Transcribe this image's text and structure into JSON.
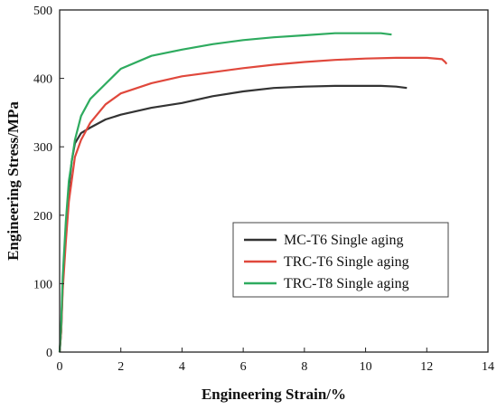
{
  "chart_data": {
    "type": "line",
    "title": "",
    "xlabel": "Engineering Strain/%",
    "ylabel": "Engineering Stress/MPa",
    "xlim": [
      0,
      14
    ],
    "ylim": [
      0,
      500
    ],
    "xticks": [
      "0",
      "2",
      "4",
      "6",
      "8",
      "10",
      "12",
      "14"
    ],
    "yticks": [
      "0",
      "100",
      "200",
      "300",
      "400",
      "500"
    ],
    "grid": false,
    "legend_position": "lower-right",
    "series": [
      {
        "name": "MC-T6 Single aging",
        "color": "#333333",
        "points": [
          [
            0,
            0
          ],
          [
            0.05,
            30
          ],
          [
            0.1,
            100
          ],
          [
            0.2,
            180
          ],
          [
            0.3,
            240
          ],
          [
            0.4,
            280
          ],
          [
            0.5,
            305
          ],
          [
            0.7,
            320
          ],
          [
            1.0,
            328
          ],
          [
            1.5,
            340
          ],
          [
            2.0,
            347
          ],
          [
            3.0,
            357
          ],
          [
            4.0,
            364
          ],
          [
            5.0,
            374
          ],
          [
            6.0,
            381
          ],
          [
            7.0,
            386
          ],
          [
            8.0,
            388
          ],
          [
            9.0,
            389
          ],
          [
            10.0,
            389
          ],
          [
            10.5,
            389
          ],
          [
            11.0,
            388
          ],
          [
            11.35,
            386
          ]
        ]
      },
      {
        "name": "TRC-T6 Single aging",
        "color": "#e0483c",
        "points": [
          [
            0,
            0
          ],
          [
            0.05,
            30
          ],
          [
            0.1,
            90
          ],
          [
            0.2,
            160
          ],
          [
            0.3,
            220
          ],
          [
            0.5,
            285
          ],
          [
            0.7,
            310
          ],
          [
            1.0,
            335
          ],
          [
            1.5,
            362
          ],
          [
            2.0,
            378
          ],
          [
            3.0,
            393
          ],
          [
            4.0,
            403
          ],
          [
            5.0,
            409
          ],
          [
            6.0,
            415
          ],
          [
            7.0,
            420
          ],
          [
            8.0,
            424
          ],
          [
            9.0,
            427
          ],
          [
            10.0,
            429
          ],
          [
            11.0,
            430
          ],
          [
            12.0,
            430
          ],
          [
            12.5,
            428
          ],
          [
            12.6,
            424
          ],
          [
            12.65,
            421
          ]
        ]
      },
      {
        "name": "TRC-T8 Single aging",
        "color": "#2eab5f",
        "points": [
          [
            0,
            0
          ],
          [
            0.05,
            40
          ],
          [
            0.1,
            110
          ],
          [
            0.2,
            190
          ],
          [
            0.3,
            250
          ],
          [
            0.5,
            310
          ],
          [
            0.7,
            345
          ],
          [
            1.0,
            370
          ],
          [
            1.5,
            392
          ],
          [
            2.0,
            414
          ],
          [
            3.0,
            433
          ],
          [
            4.0,
            442
          ],
          [
            5.0,
            450
          ],
          [
            6.0,
            456
          ],
          [
            7.0,
            460
          ],
          [
            8.0,
            463
          ],
          [
            9.0,
            466
          ],
          [
            10.0,
            466
          ],
          [
            10.5,
            466
          ],
          [
            10.85,
            464
          ]
        ]
      }
    ]
  }
}
